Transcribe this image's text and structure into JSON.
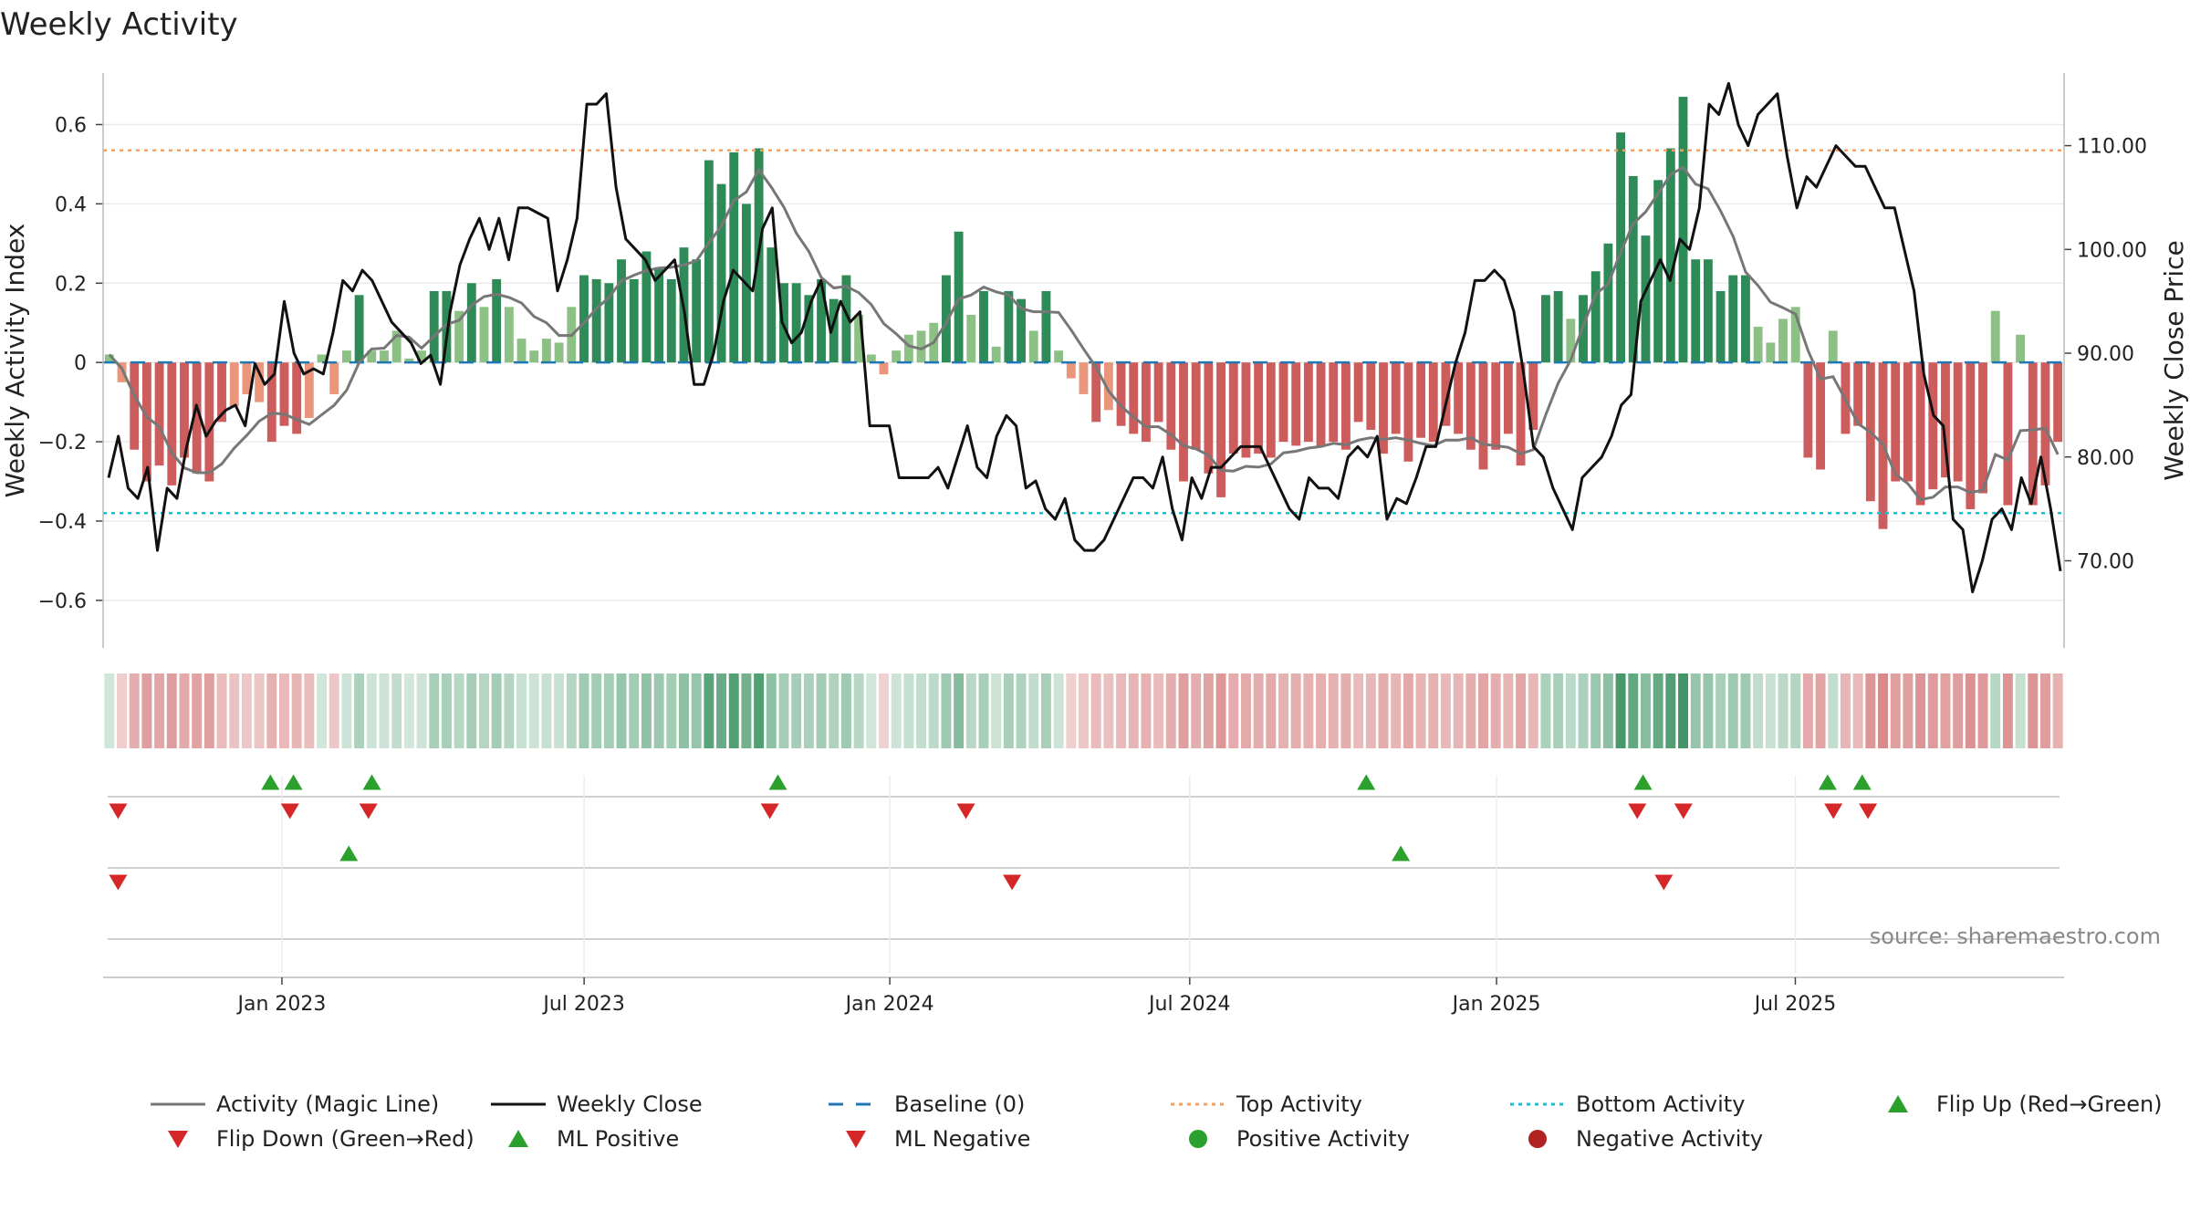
{
  "chart_data": {
    "type": "bar",
    "title": "Weekly Activity",
    "ylabel": "Weekly Activity Index",
    "y2label": "Weekly Close Price",
    "ylim": [
      -0.72,
      0.73
    ],
    "y2lim": [
      61.6,
      117.0
    ],
    "yticks": [
      -0.6,
      -0.4,
      -0.2,
      0,
      0.2,
      0.4,
      0.6
    ],
    "ytick_labels": [
      "−0.6",
      "−0.4",
      "−0.2",
      "0",
      "0.2",
      "0.4",
      "0.6"
    ],
    "y2ticks": [
      70,
      80,
      90,
      100,
      110
    ],
    "y2tick_labels": [
      "70.00",
      "80.00",
      "90.00",
      "100.00",
      "110.00"
    ],
    "xrange": [
      0,
      170
    ],
    "xticks": [
      {
        "x": 15.5,
        "label": "Jan 2023"
      },
      {
        "x": 41.7,
        "label": "Jul 2023"
      },
      {
        "x": 68.2,
        "label": "Jan 2024"
      },
      {
        "x": 94.2,
        "label": "Jul 2024"
      },
      {
        "x": 120.8,
        "label": "Jan 2025"
      },
      {
        "x": 146.7,
        "label": "Jul 2025"
      }
    ],
    "top_activity": 0.535,
    "bottom_activity": -0.38,
    "baseline": 0,
    "grid": true,
    "activity": [
      0.02,
      -0.05,
      -0.22,
      -0.3,
      -0.26,
      -0.31,
      -0.24,
      -0.28,
      -0.3,
      -0.15,
      -0.11,
      -0.08,
      -0.1,
      -0.2,
      -0.16,
      -0.18,
      -0.14,
      0.02,
      -0.08,
      0.03,
      0.17,
      0.03,
      0.03,
      0.08,
      0.01,
      0.03,
      0.18,
      0.18,
      0.13,
      0.2,
      0.14,
      0.21,
      0.14,
      0.06,
      0.03,
      0.06,
      0.05,
      0.14,
      0.22,
      0.21,
      0.2,
      0.26,
      0.21,
      0.28,
      0.24,
      0.21,
      0.29,
      0.26,
      0.51,
      0.45,
      0.53,
      0.4,
      0.54,
      0.29,
      0.2,
      0.2,
      0.17,
      0.21,
      0.16,
      0.22,
      0.12,
      0.02,
      -0.03,
      0.03,
      0.07,
      0.08,
      0.1,
      0.22,
      0.33,
      0.12,
      0.18,
      0.04,
      0.18,
      0.16,
      0.08,
      0.18,
      0.03,
      -0.04,
      -0.08,
      -0.15,
      -0.12,
      -0.16,
      -0.18,
      -0.2,
      -0.15,
      -0.22,
      -0.3,
      -0.22,
      -0.28,
      -0.34,
      -0.23,
      -0.24,
      -0.23,
      -0.24,
      -0.2,
      -0.21,
      -0.2,
      -0.21,
      -0.2,
      -0.22,
      -0.15,
      -0.17,
      -0.23,
      -0.18,
      -0.25,
      -0.19,
      -0.2,
      -0.16,
      -0.18,
      -0.22,
      -0.27,
      -0.22,
      -0.18,
      -0.26,
      -0.17,
      0.17,
      0.18,
      0.11,
      0.17,
      0.23,
      0.3,
      0.58,
      0.47,
      0.32,
      0.46,
      0.54,
      0.67,
      0.26,
      0.26,
      0.18,
      0.22,
      0.22,
      0.09,
      0.05,
      0.11,
      0.14,
      -0.24,
      -0.27,
      0.08,
      -0.18,
      -0.16,
      -0.35,
      -0.42,
      -0.3,
      -0.3,
      -0.36,
      -0.32,
      -0.29,
      -0.3,
      -0.37,
      -0.33,
      0.13,
      -0.36,
      0.07,
      -0.36,
      -0.31,
      -0.2
    ],
    "weekly_close": [
      78,
      82,
      77,
      76,
      79,
      71,
      77,
      76,
      81,
      85,
      82,
      83.5,
      84.5,
      85,
      83,
      89,
      87,
      88,
      95,
      90,
      88,
      88.5,
      88,
      92,
      97,
      96,
      98,
      97,
      95,
      93,
      92,
      91,
      89,
      89.8,
      87,
      94,
      98.5,
      101,
      103,
      100,
      103,
      99,
      104,
      104,
      103.5,
      103,
      96,
      99,
      103,
      114,
      114,
      115,
      106,
      101,
      100,
      99,
      97,
      98,
      99,
      94,
      87,
      87,
      90,
      95,
      98,
      97,
      96,
      102,
      104,
      93,
      91,
      92,
      95,
      97,
      92,
      95,
      93,
      94,
      83,
      83,
      83,
      78,
      78,
      78,
      78,
      79,
      77,
      80,
      83,
      79,
      78,
      82,
      84,
      83,
      77,
      77.7,
      75,
      74,
      76,
      72,
      71,
      71,
      72,
      74,
      76,
      78,
      78,
      77,
      80,
      75,
      72,
      78,
      76,
      79,
      79,
      80,
      81,
      81,
      81,
      79,
      77,
      75,
      74,
      78,
      77,
      77,
      76,
      80,
      81,
      80,
      82,
      74,
      76,
      75.5,
      78,
      81,
      81,
      85,
      89,
      92,
      97,
      97,
      98,
      97,
      94,
      88,
      81,
      80,
      77,
      75,
      73,
      78,
      79,
      80,
      82,
      85,
      86,
      95,
      97,
      99,
      97,
      101,
      100,
      104,
      114,
      113,
      116,
      112,
      110,
      113,
      114,
      115,
      109,
      104,
      107,
      106,
      108,
      110,
      109,
      108,
      108,
      106,
      104,
      104,
      100,
      96,
      88,
      84,
      83,
      74,
      73,
      67,
      70,
      74,
      75,
      73,
      78,
      75.5,
      80,
      75,
      69
    ]
  },
  "strip_ticks": {
    "flip_up": [
      14.5,
      16.5,
      23.3,
      58.5,
      109.5,
      133.5,
      149.5,
      152.5
    ],
    "flip_down": [
      1.3,
      16.2,
      23.0,
      57.8,
      74.8,
      133.0,
      137.0,
      150.0,
      153.0
    ],
    "ml_positive": [
      21.3,
      112.5
    ],
    "ml_negative": [
      1.3,
      78.8,
      135.3
    ]
  },
  "source_text": "source: sharemaestro.com",
  "legend": [
    {
      "label": "Activity (Magic Line)",
      "kind": "line",
      "color": "#777777"
    },
    {
      "label": "Weekly Close",
      "kind": "line",
      "color": "#111111"
    },
    {
      "label": "Baseline (0)",
      "kind": "dash",
      "color": "#1f77b4"
    },
    {
      "label": "Top Activity",
      "kind": "dot",
      "color": "#f4a060"
    },
    {
      "label": "Bottom Activity",
      "kind": "dot",
      "color": "#17becf"
    },
    {
      "label": "Flip Up (Red→Green)",
      "kind": "tri-up",
      "color": "#2ca02c"
    },
    {
      "label": "Flip Down (Green→Red)",
      "kind": "tri-down",
      "color": "#d62728"
    },
    {
      "label": "ML Positive",
      "kind": "tri-up",
      "color": "#2ca02c"
    },
    {
      "label": "ML Negative",
      "kind": "tri-down",
      "color": "#d62728"
    },
    {
      "label": "Positive Activity",
      "kind": "circle",
      "color": "#2ca02c"
    },
    {
      "label": "Negative Activity",
      "kind": "circle",
      "color": "#b22222"
    }
  ],
  "colors": {
    "strong_pos": "#2e8b57",
    "weak_pos": "#8cc084",
    "strong_neg": "#cd5c5c",
    "weak_neg": "#e9967a"
  }
}
